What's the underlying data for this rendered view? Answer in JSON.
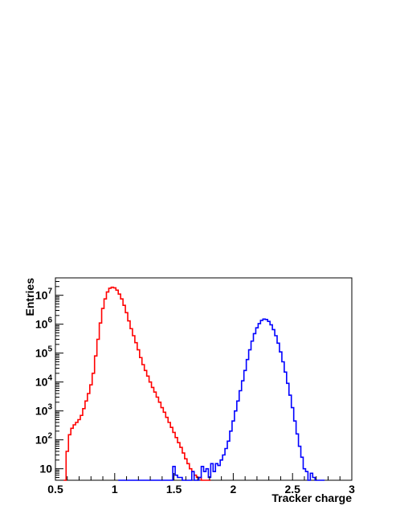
{
  "chart_data": {
    "type": "line",
    "title": "",
    "xlabel": "Tracker charge",
    "ylabel": "Entries",
    "xlim": [
      0.5,
      3.0
    ],
    "ylim": [
      4,
      40000000
    ],
    "yscale": "log",
    "grid": false,
    "legend": "none",
    "x_ticks": [
      {
        "value": 0.5,
        "label": "0.5"
      },
      {
        "value": 1.0,
        "label": "1"
      },
      {
        "value": 1.5,
        "label": "1.5"
      },
      {
        "value": 2.0,
        "label": "2"
      },
      {
        "value": 2.5,
        "label": "2.5"
      },
      {
        "value": 3.0,
        "label": "3"
      }
    ],
    "y_ticks": [
      {
        "value": 10,
        "base": "10",
        "exp": ""
      },
      {
        "value": 100,
        "base": "10",
        "exp": "2"
      },
      {
        "value": 1000,
        "base": "10",
        "exp": "3"
      },
      {
        "value": 10000,
        "base": "10",
        "exp": "4"
      },
      {
        "value": 100000,
        "base": "10",
        "exp": "5"
      },
      {
        "value": 1000000,
        "base": "10",
        "exp": "6"
      },
      {
        "value": 10000000,
        "base": "10",
        "exp": "7"
      }
    ],
    "series": [
      {
        "color": "#ff0000",
        "bin_width": 0.02,
        "x": [
          0.58,
          0.6,
          0.62,
          0.64,
          0.66,
          0.68,
          0.7,
          0.72,
          0.74,
          0.76,
          0.78,
          0.8,
          0.82,
          0.84,
          0.86,
          0.88,
          0.9,
          0.92,
          0.94,
          0.96,
          0.98,
          1.0,
          1.02,
          1.04,
          1.06,
          1.08,
          1.1,
          1.12,
          1.14,
          1.16,
          1.18,
          1.2,
          1.22,
          1.24,
          1.26,
          1.28,
          1.3,
          1.32,
          1.34,
          1.36,
          1.38,
          1.4,
          1.42,
          1.44,
          1.46,
          1.48,
          1.5,
          1.52,
          1.54,
          1.56,
          1.58,
          1.6,
          1.62,
          1.64,
          1.66,
          1.68,
          1.7,
          1.72,
          1.74,
          1.76,
          1.78,
          1.8
        ],
        "values": [
          4,
          40,
          150,
          250,
          330,
          400,
          500,
          700,
          1200,
          2200,
          4000,
          8000,
          20000,
          80000,
          300000,
          1100000,
          3500000,
          7500000,
          13000000,
          17500000,
          19000000,
          18000000,
          15000000,
          11000000,
          7500000,
          4500000,
          2500000,
          1300000,
          700000,
          400000,
          230000,
          130000,
          70000,
          40000,
          25000,
          16000,
          10000,
          6500,
          4500,
          3000,
          2000,
          1300,
          900,
          600,
          400,
          270,
          180,
          120,
          80,
          55,
          35,
          22,
          15,
          10,
          8,
          6,
          5,
          5,
          4,
          4,
          4,
          4
        ]
      },
      {
        "color": "#0000ff",
        "bin_width": 0.02,
        "x": [
          1.04,
          1.06,
          1.08,
          1.1,
          1.12,
          1.14,
          1.16,
          1.18,
          1.2,
          1.22,
          1.24,
          1.26,
          1.28,
          1.3,
          1.32,
          1.34,
          1.36,
          1.38,
          1.4,
          1.42,
          1.44,
          1.46,
          1.48,
          1.5,
          1.52,
          1.54,
          1.56,
          1.58,
          1.6,
          1.62,
          1.64,
          1.66,
          1.68,
          1.7,
          1.72,
          1.74,
          1.76,
          1.78,
          1.8,
          1.82,
          1.84,
          1.86,
          1.88,
          1.9,
          1.92,
          1.94,
          1.96,
          1.98,
          2.0,
          2.02,
          2.04,
          2.06,
          2.08,
          2.1,
          2.12,
          2.14,
          2.16,
          2.18,
          2.2,
          2.22,
          2.24,
          2.26,
          2.28,
          2.3,
          2.32,
          2.34,
          2.36,
          2.38,
          2.4,
          2.42,
          2.44,
          2.46,
          2.48,
          2.5,
          2.52,
          2.54,
          2.56,
          2.58,
          2.6,
          2.62,
          2.64,
          2.66,
          2.68,
          2.7,
          2.72,
          2.74,
          2.76
        ],
        "values": [
          4,
          4,
          4,
          4,
          4,
          4,
          4,
          4,
          4,
          4,
          4,
          4,
          4,
          4,
          4,
          4,
          4,
          4,
          4,
          4,
          4,
          4,
          4,
          12,
          6,
          5,
          5,
          4,
          4,
          4,
          4,
          8,
          4,
          4,
          5,
          12,
          8,
          10,
          5,
          15,
          8,
          15,
          13,
          20,
          30,
          50,
          90,
          200,
          450,
          1000,
          2200,
          5000,
          11000,
          25000,
          60000,
          130000,
          260000,
          470000,
          750000,
          1050000,
          1350000,
          1500000,
          1450000,
          1250000,
          950000,
          650000,
          400000,
          220000,
          110000,
          50000,
          22000,
          9000,
          3500,
          1300,
          450,
          160,
          60,
          25,
          10,
          8,
          4,
          7,
          5,
          4,
          4,
          4,
          4
        ]
      }
    ]
  }
}
